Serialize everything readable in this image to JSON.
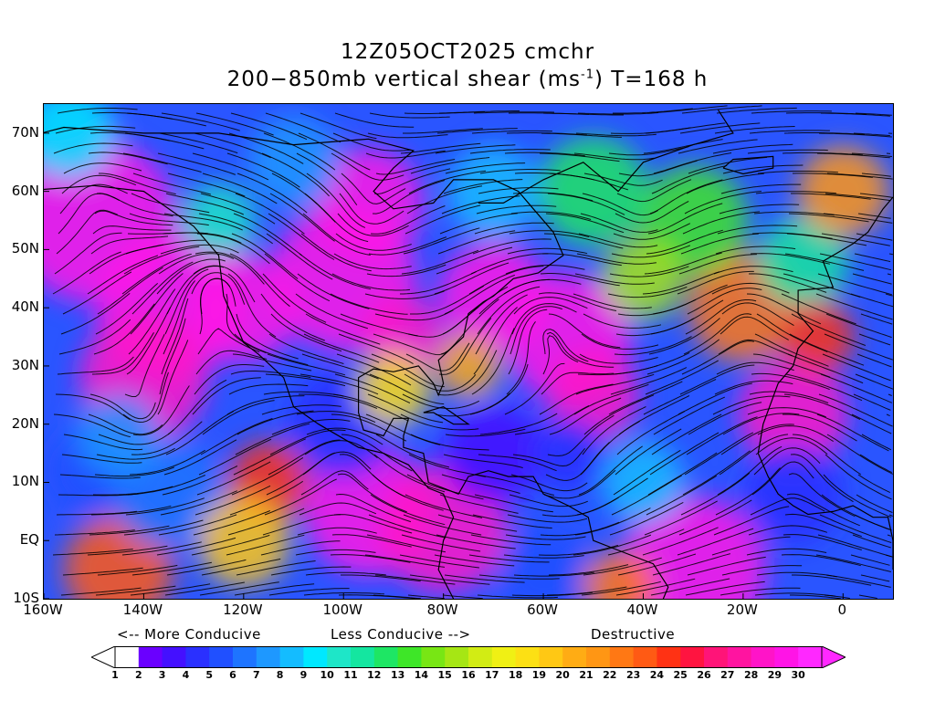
{
  "title": {
    "line1": "12Z05OCT2025 cmchr",
    "line2_pre": "200−850mb vertical shear (ms",
    "line2_sup": "-1",
    "line2_post": ") T=168 h"
  },
  "map": {
    "lon_labels": [
      "160W",
      "140W",
      "120W",
      "100W",
      "80W",
      "60W",
      "40W",
      "20W",
      "0"
    ],
    "lon_values": [
      -160,
      -140,
      -120,
      -100,
      -80,
      -60,
      -40,
      -20,
      0
    ],
    "lat_labels": [
      "70N",
      "60N",
      "50N",
      "40N",
      "30N",
      "20N",
      "10N",
      "EQ",
      "10S"
    ],
    "lat_values": [
      70,
      60,
      50,
      40,
      30,
      20,
      10,
      0,
      -10
    ],
    "lon_range": [
      -160,
      10
    ],
    "lat_range": [
      -10,
      75
    ],
    "field": "200-850mb vertical shear",
    "shading": "filled contours",
    "overlay": "streamlines"
  },
  "annotations": {
    "more_conducive": "<-- More Conducive",
    "less_conducive": "Less Conducive -->",
    "destructive": "Destructive"
  },
  "colorbar": {
    "labels": [
      "1",
      "2",
      "3",
      "4",
      "5",
      "6",
      "7",
      "8",
      "9",
      "10",
      "11",
      "12",
      "13",
      "14",
      "15",
      "16",
      "17",
      "18",
      "19",
      "20",
      "21",
      "22",
      "23",
      "24",
      "25",
      "26",
      "27",
      "28",
      "29",
      "30"
    ],
    "colors": [
      "#ffffff",
      "#6a00ff",
      "#4410ff",
      "#2a30ff",
      "#2050ff",
      "#1e74ff",
      "#1e98ff",
      "#14bcff",
      "#00e8ff",
      "#1ee6c8",
      "#14e6a0",
      "#1ee664",
      "#3ee628",
      "#78e614",
      "#a6e614",
      "#d2ec14",
      "#f0f014",
      "#fce014",
      "#ffc814",
      "#ffac14",
      "#ff9614",
      "#ff7814",
      "#ff5a14",
      "#ff3214",
      "#ff1440",
      "#ff1478",
      "#ff14a0",
      "#ff14c8",
      "#ff14e6",
      "#ff28ff"
    ],
    "underflow_color": "#ffffff",
    "overflow_color": "#ff28ff"
  }
}
